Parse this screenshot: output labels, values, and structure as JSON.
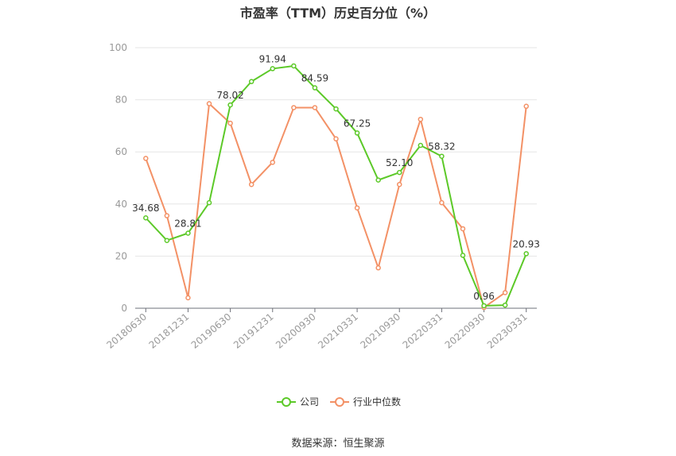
{
  "chart_data": {
    "type": "line",
    "title": "市盈率（TTM）历史百分位（%）",
    "source": "数据来源：恒生聚源",
    "ylim": [
      0,
      100
    ],
    "yticks": [
      0,
      20,
      40,
      60,
      80,
      100
    ],
    "x_tick_labels": [
      "20180630",
      "20181231",
      "20190630",
      "20191231",
      "20200930",
      "20210331",
      "20210930",
      "20220331",
      "20220930",
      "20230331"
    ],
    "x_tick_positions": [
      0,
      2,
      4,
      6,
      8,
      10,
      12,
      14,
      16,
      18
    ],
    "grid": true,
    "legend_position": "bottom",
    "series": [
      {
        "name": "公司",
        "color": "#5cc928",
        "values": [
          34.68,
          26.0,
          28.81,
          40.5,
          78.02,
          87.0,
          91.94,
          93.0,
          84.59,
          76.5,
          67.25,
          49.2,
          52.1,
          62.5,
          58.32,
          20.3,
          0.96,
          1.2,
          20.93
        ],
        "labels": {
          "0": "34.68",
          "2": "28.81",
          "4": "78.02",
          "6": "91.94",
          "8": "84.59",
          "10": "67.25",
          "12": "52.10",
          "14": "58.32",
          "16": "0.96",
          "18": "20.93"
        }
      },
      {
        "name": "行业中位数",
        "color": "#f39166",
        "values": [
          57.5,
          35.5,
          4.0,
          78.5,
          71.0,
          47.5,
          56.0,
          77.0,
          77.0,
          65.0,
          38.5,
          15.5,
          47.5,
          72.5,
          40.5,
          30.5,
          0.3,
          6.0,
          77.5
        ]
      }
    ]
  }
}
